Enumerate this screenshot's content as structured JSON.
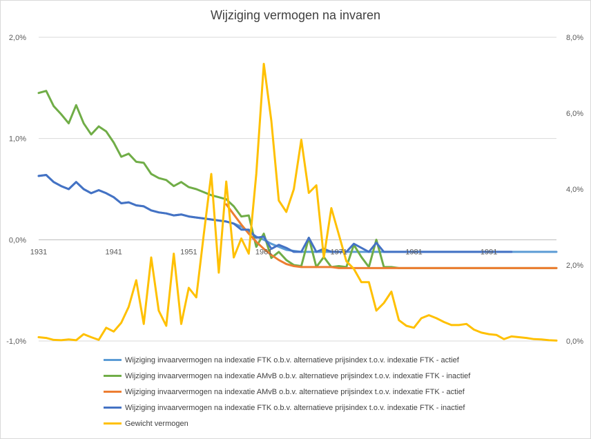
{
  "chart_data": {
    "type": "line",
    "title": "Wijziging vermogen na invaren",
    "xlabel": "",
    "ylabel": "",
    "y_left": {
      "lim": [
        -1.0,
        2.0
      ],
      "ticks": [
        "-1,0%",
        "0,0%",
        "1,0%",
        "2,0%"
      ],
      "tick_values": [
        -1.0,
        0.0,
        1.0,
        2.0
      ]
    },
    "y_right": {
      "lim": [
        0.0,
        8.0
      ],
      "ticks": [
        "0,0%",
        "2,0%",
        "4,0%",
        "6,0%",
        "8,0%"
      ],
      "tick_values": [
        0,
        2,
        4,
        6,
        8
      ]
    },
    "x_tick_labels": [
      "1931",
      "1941",
      "1951",
      "1961",
      "1971",
      "1981",
      "1991"
    ],
    "x_tick_values": [
      1931,
      1941,
      1951,
      1961,
      1971,
      1981,
      1991
    ],
    "x_axis_at_y_left": 0.0,
    "x": [
      1931,
      1932,
      1933,
      1934,
      1935,
      1936,
      1937,
      1938,
      1939,
      1940,
      1941,
      1942,
      1943,
      1944,
      1945,
      1946,
      1947,
      1948,
      1949,
      1950,
      1951,
      1952,
      1953,
      1954,
      1955,
      1956,
      1957,
      1958,
      1959,
      1960,
      1961,
      1962,
      1963,
      1964,
      1965,
      1966,
      1967,
      1968,
      1969,
      1970,
      1971,
      1972,
      1973,
      1974,
      1975,
      1976,
      1977,
      1978,
      1979,
      1980,
      1981,
      1982,
      1983,
      1984,
      1985,
      1986,
      1987,
      1988,
      1989,
      1990,
      1991,
      1992,
      1993,
      1994,
      1995,
      1996,
      1997,
      1998,
      1999,
      2000
    ],
    "grid": true,
    "legend_position": "bottom",
    "series": [
      {
        "name": "Wijziging invaarvermogen na indexatie FTK o.b.v. alternatieve prijsindex t.o.v. indexatie FTK - actief",
        "axis": "left",
        "color": "#5B9BD5",
        "values": [
          0.63,
          0.64,
          0.57,
          0.53,
          0.5,
          0.57,
          0.5,
          0.46,
          0.49,
          0.46,
          0.42,
          0.36,
          0.37,
          0.34,
          0.33,
          0.29,
          0.27,
          0.26,
          0.24,
          0.25,
          0.23,
          0.22,
          0.21,
          0.2,
          0.19,
          0.18,
          0.16,
          0.13,
          0.08,
          0.03,
          0.0,
          -0.04,
          -0.07,
          -0.1,
          -0.11,
          -0.12,
          -0.12,
          -0.12,
          -0.12,
          -0.12,
          -0.12,
          -0.12,
          -0.12,
          -0.12,
          -0.12,
          -0.12,
          -0.12,
          -0.12,
          -0.12,
          -0.12,
          -0.12,
          -0.12,
          -0.12,
          -0.12,
          -0.12,
          -0.12,
          -0.12,
          -0.12,
          -0.12,
          -0.12,
          -0.12,
          -0.12,
          -0.12,
          -0.12,
          -0.12,
          -0.12,
          -0.12,
          -0.12,
          -0.12,
          -0.12
        ]
      },
      {
        "name": "Wijziging invaarvermogen na indexatie AMvB o.b.v. alternatieve prijsindex t.o.v. indexatie FTK - inactief",
        "axis": "left",
        "color": "#70AD47",
        "values": [
          1.45,
          1.47,
          1.32,
          1.24,
          1.15,
          1.33,
          1.15,
          1.04,
          1.12,
          1.07,
          0.96,
          0.82,
          0.85,
          0.77,
          0.76,
          0.65,
          0.61,
          0.59,
          0.53,
          0.57,
          0.52,
          0.5,
          0.47,
          0.44,
          0.42,
          0.4,
          0.33,
          0.23,
          0.24,
          -0.07,
          0.06,
          -0.18,
          -0.12,
          -0.2,
          -0.25,
          -0.26,
          0.02,
          -0.27,
          -0.17,
          -0.27,
          -0.26,
          -0.27,
          -0.05,
          -0.17,
          -0.27,
          0.0,
          -0.27,
          -0.27,
          -0.28,
          -0.28,
          -0.28,
          -0.28,
          -0.28,
          -0.28,
          -0.28,
          -0.28,
          -0.28,
          -0.28,
          -0.28,
          -0.28,
          -0.28,
          -0.28,
          -0.28,
          -0.28,
          -0.28,
          -0.28,
          -0.28,
          -0.28,
          -0.28,
          -0.28
        ]
      },
      {
        "name": "Wijziging invaarvermogen na indexatie AMvB o.b.v. alternatieve prijsindex t.o.v. indexatie FTK - actief",
        "axis": "left",
        "color": "#ED7D31",
        "values": [
          null,
          null,
          null,
          null,
          null,
          null,
          null,
          null,
          null,
          null,
          null,
          null,
          null,
          null,
          null,
          null,
          null,
          null,
          null,
          null,
          null,
          null,
          null,
          null,
          null,
          0.35,
          0.25,
          0.15,
          0.06,
          -0.02,
          -0.09,
          -0.15,
          -0.2,
          -0.24,
          -0.26,
          -0.27,
          -0.27,
          -0.27,
          -0.27,
          -0.27,
          -0.28,
          -0.28,
          -0.28,
          -0.28,
          -0.28,
          -0.28,
          -0.28,
          -0.28,
          -0.28,
          -0.28,
          -0.28,
          -0.28,
          -0.28,
          -0.28,
          -0.28,
          -0.28,
          -0.28,
          -0.28,
          -0.28,
          -0.28,
          -0.28,
          -0.28,
          -0.28,
          -0.28,
          -0.28,
          -0.28,
          -0.28,
          -0.28,
          -0.28,
          -0.28
        ]
      },
      {
        "name": "Wijziging invaarvermogen na indexatie FTK o.b.v. alternatieve prijsindex t.o.v. indexatie FTK - inactief",
        "axis": "left",
        "color": "#4472C4",
        "values": [
          0.63,
          0.64,
          0.57,
          0.53,
          0.5,
          0.57,
          0.5,
          0.46,
          0.49,
          0.46,
          0.42,
          0.36,
          0.37,
          0.34,
          0.33,
          0.29,
          0.27,
          0.26,
          0.24,
          0.25,
          0.23,
          0.22,
          0.21,
          0.2,
          0.19,
          0.18,
          0.16,
          0.1,
          0.1,
          0.02,
          0.03,
          -0.09,
          -0.05,
          -0.08,
          -0.12,
          -0.12,
          0.02,
          -0.12,
          -0.09,
          -0.12,
          -0.12,
          -0.12,
          -0.04,
          -0.08,
          -0.12,
          -0.03,
          -0.12,
          -0.12,
          -0.12,
          -0.12,
          -0.12,
          -0.12,
          -0.12,
          -0.12,
          -0.12,
          -0.12,
          -0.12,
          -0.12,
          -0.12,
          -0.12,
          -0.12,
          -0.12,
          -0.12,
          -0.12,
          null,
          null,
          null,
          null,
          null,
          null
        ]
      },
      {
        "name": "Gewicht vermogen",
        "axis": "right",
        "color": "#FFC000",
        "values": [
          0.1,
          0.08,
          0.03,
          0.02,
          0.04,
          0.02,
          0.18,
          0.1,
          0.03,
          0.35,
          0.25,
          0.48,
          0.9,
          1.6,
          0.45,
          2.2,
          0.8,
          0.4,
          2.3,
          0.45,
          1.4,
          1.15,
          2.8,
          4.4,
          1.8,
          4.2,
          2.2,
          2.7,
          2.3,
          4.4,
          7.3,
          5.8,
          3.7,
          3.4,
          4.0,
          5.3,
          3.9,
          4.1,
          2.2,
          3.5,
          2.8,
          2.1,
          1.9,
          1.55,
          1.55,
          0.8,
          1.0,
          1.3,
          0.55,
          0.4,
          0.35,
          0.6,
          0.68,
          0.6,
          0.5,
          0.42,
          0.42,
          0.45,
          0.3,
          0.22,
          0.18,
          0.16,
          0.05,
          0.12,
          0.1,
          0.08,
          0.05,
          0.04,
          0.02,
          0.01
        ]
      }
    ]
  }
}
